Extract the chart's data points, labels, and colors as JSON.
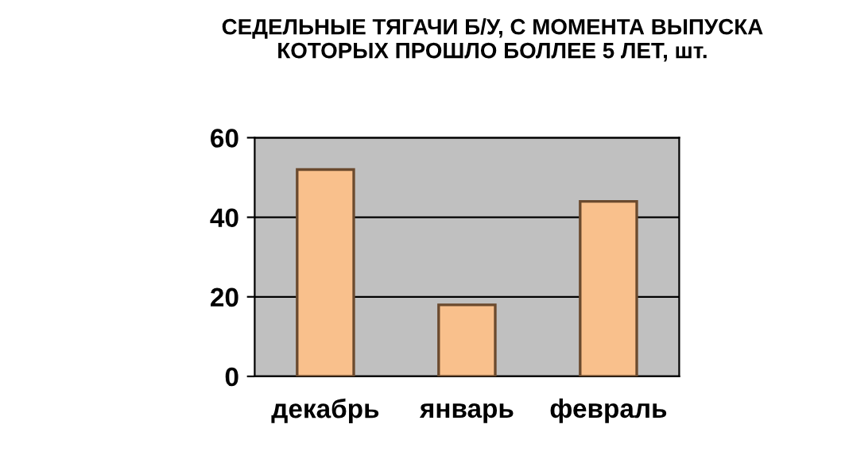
{
  "chart_data": {
    "type": "bar",
    "title": "СЕДЕЛЬНЫЕ ТЯГАЧИ Б/У, С МОМЕНТА ВЫПУСКА\nКОТОРЫХ ПРОШЛО БОЛЛЕЕ 5 ЛЕТ, шт.",
    "categories": [
      "декабрь",
      "январь",
      "февраль"
    ],
    "values": [
      52,
      18,
      44
    ],
    "color": "#f9c08c",
    "ylim": [
      0,
      60
    ],
    "yticks": [
      0,
      20,
      40,
      60
    ],
    "grid": "y"
  }
}
